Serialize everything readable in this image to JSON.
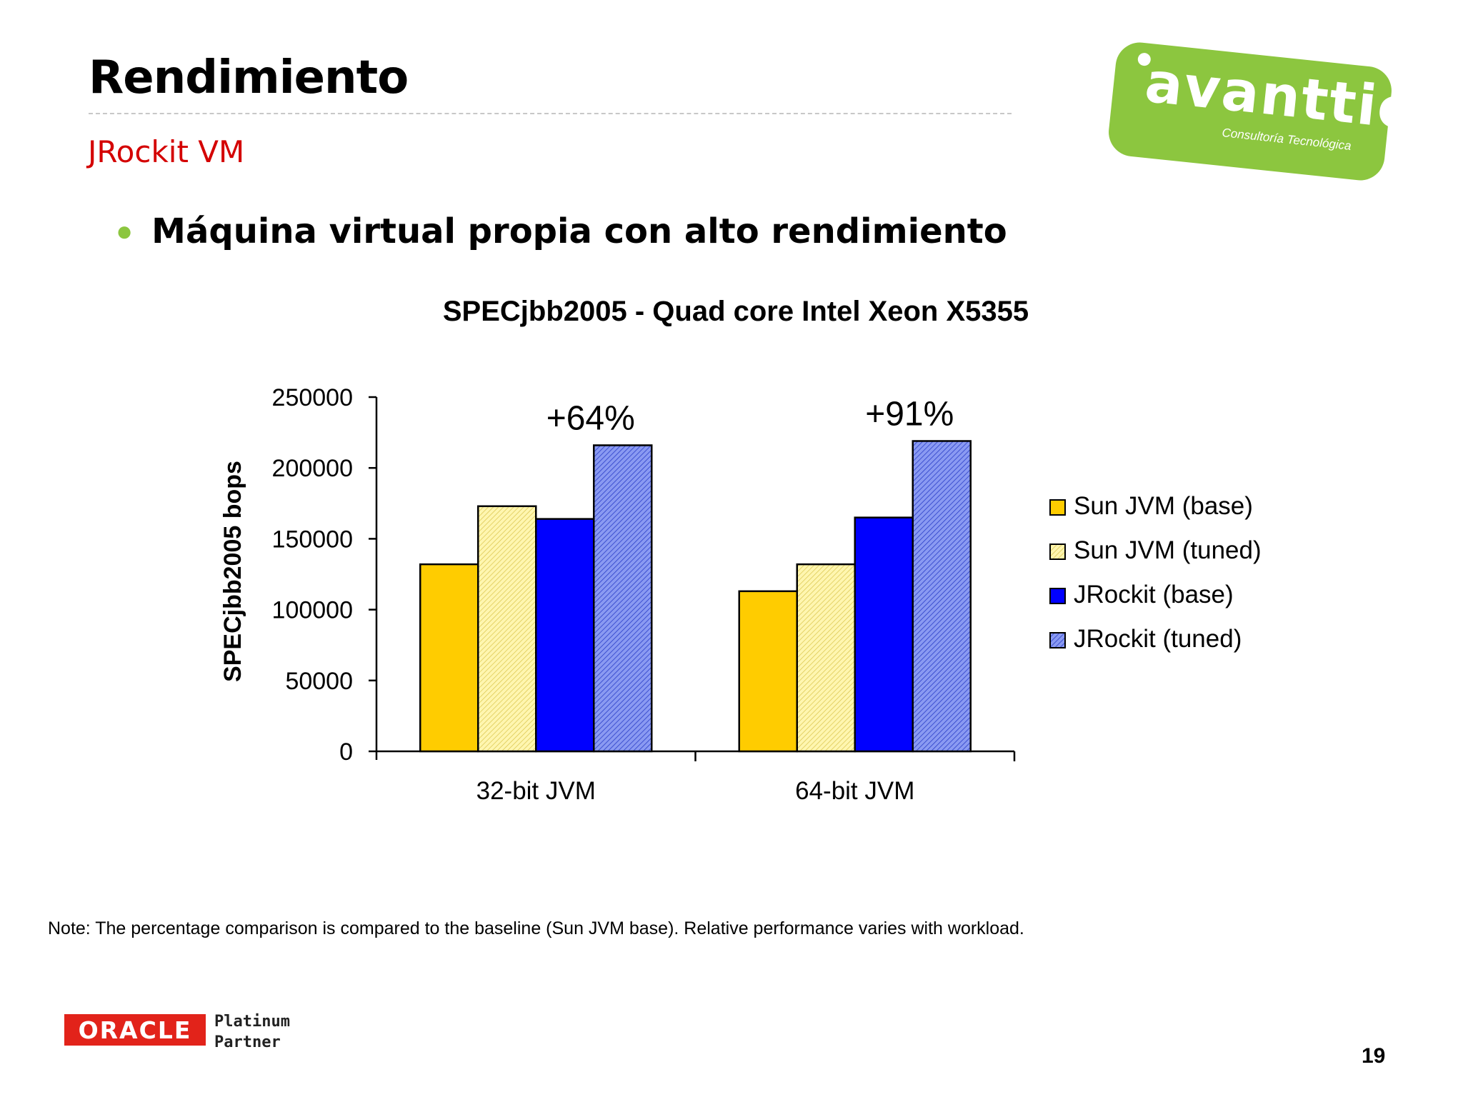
{
  "slide": {
    "title": "Rendimiento",
    "subtitle": "JRockit VM",
    "bullet": "Máquina virtual propia con alto rendimiento",
    "note": "Note: The percentage comparison is compared to the baseline (Sun JVM base). Relative performance varies with workload.",
    "page_number": "19"
  },
  "logo": {
    "brand": "avanttic",
    "tagline": "Consultoría Tecnológica",
    "color": "#8cc63f"
  },
  "footer": {
    "oracle": "ORACLE",
    "partner_line1": "Platinum",
    "partner_line2": "Partner",
    "oracle_color": "#e2231a"
  },
  "chart_data": {
    "type": "bar",
    "title": "SPECjbb2005 - Quad core Intel Xeon X5355",
    "xlabel": "",
    "ylabel": "SPECjbb2005 bops",
    "ylim": [
      0,
      250000
    ],
    "yticks": [
      0,
      50000,
      100000,
      150000,
      200000,
      250000
    ],
    "categories": [
      "32-bit JVM",
      "64-bit JVM"
    ],
    "series": [
      {
        "name": "Sun JVM (base)",
        "values": [
          132000,
          113000
        ],
        "color": "#ffcc00",
        "pattern": "solid"
      },
      {
        "name": "Sun JVM (tuned)",
        "values": [
          173000,
          132000
        ],
        "color": "#ffee88",
        "pattern": "hatch"
      },
      {
        "name": "JRockit (base)",
        "values": [
          164000,
          165000
        ],
        "color": "#0000ff",
        "pattern": "solid"
      },
      {
        "name": "JRockit (tuned)",
        "values": [
          216000,
          219000
        ],
        "color": "#6677ee",
        "pattern": "hatch"
      }
    ],
    "annotations": [
      "+64%",
      "+91%"
    ],
    "legend": "right",
    "grid": false
  }
}
